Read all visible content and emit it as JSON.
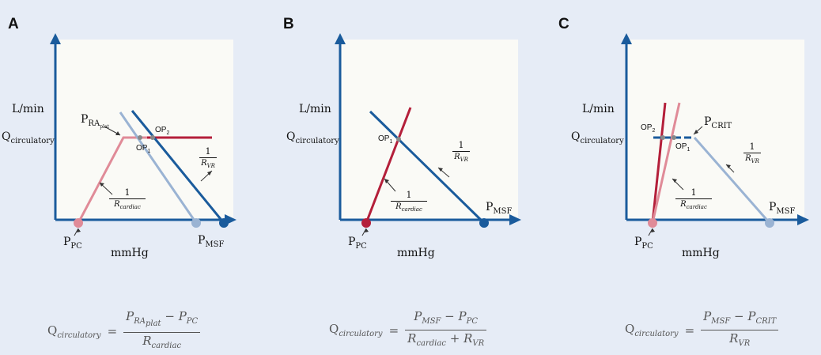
{
  "colors": {
    "axis": "#1a5b9c",
    "dark_red": "#b41f3a",
    "light_red": "#e08b98",
    "dark_blue": "#1a5b9c",
    "light_blue": "#9ab3d3",
    "background": "#e6ecf6",
    "plot_bg": "#fafaf6"
  },
  "panels": [
    {
      "label": "A",
      "y_unit": "L/min",
      "y_var": "Q",
      "y_var_sub": "circulatory",
      "x_unit": "mmHg",
      "op1": "OP",
      "op1_sub": "1",
      "op2": "OP",
      "op2_sub": "2",
      "p_plat": "P",
      "p_plat_sub": "RA",
      "p_plat_sub2": "plat",
      "ppc": "P",
      "ppc_sub": "PC",
      "pmsf": "P",
      "pmsf_sub": "MSF",
      "frac_vr_num": "1",
      "frac_vr_den": "R",
      "frac_vr_den_sub": "VR",
      "frac_card_num": "1",
      "frac_card_den": "R",
      "frac_card_den_sub": "cardiac",
      "equation": {
        "lhs": "Q",
        "lhs_sub": "circulatory",
        "eq": "=",
        "num_a": "P",
        "num_a_sub": "RA",
        "num_a_sub2": "plat",
        "num_op": " − ",
        "num_b": "P",
        "num_b_sub": "PC",
        "den": "R",
        "den_sub": "cardiac"
      }
    },
    {
      "label": "B",
      "y_unit": "L/min",
      "y_var": "Q",
      "y_var_sub": "circulatory",
      "x_unit": "mmHg",
      "op1": "OP",
      "op1_sub": "1",
      "ppc": "P",
      "ppc_sub": "PC",
      "pmsf": "P",
      "pmsf_sub": "MSF",
      "frac_vr_num": "1",
      "frac_vr_den": "R",
      "frac_vr_den_sub": "VR",
      "frac_card_num": "1",
      "frac_card_den": "R",
      "frac_card_den_sub": "cardiac",
      "equation": {
        "lhs": "Q",
        "lhs_sub": "circulatory",
        "eq": "=",
        "num_a": "P",
        "num_a_sub": "MSF",
        "num_op": " − ",
        "num_b": "P",
        "num_b_sub": "PC",
        "den": "R",
        "den_sub": "cardiac",
        "den_op": " + ",
        "den_b": "R",
        "den_b_sub": "VR"
      }
    },
    {
      "label": "C",
      "y_unit": "L/min",
      "y_var": "Q",
      "y_var_sub": "circulatory",
      "x_unit": "mmHg",
      "op1": "OP",
      "op1_sub": "1",
      "op2": "OP",
      "op2_sub": "2",
      "pcrit": "P",
      "pcrit_sub": "CRIT",
      "ppc": "P",
      "ppc_sub": "PC",
      "pmsf": "P",
      "pmsf_sub": "MSF",
      "frac_vr_num": "1",
      "frac_vr_den": "R",
      "frac_vr_den_sub": "VR",
      "frac_card_num": "1",
      "frac_card_den": "R",
      "frac_card_den_sub": "cardiac",
      "equation": {
        "lhs": "Q",
        "lhs_sub": "circulatory",
        "eq": "=",
        "num_a": "P",
        "num_a_sub": "MSF",
        "num_op": " − ",
        "num_b": "P",
        "num_b_sub": "CRIT",
        "den": "R",
        "den_sub": "VR"
      }
    }
  ]
}
